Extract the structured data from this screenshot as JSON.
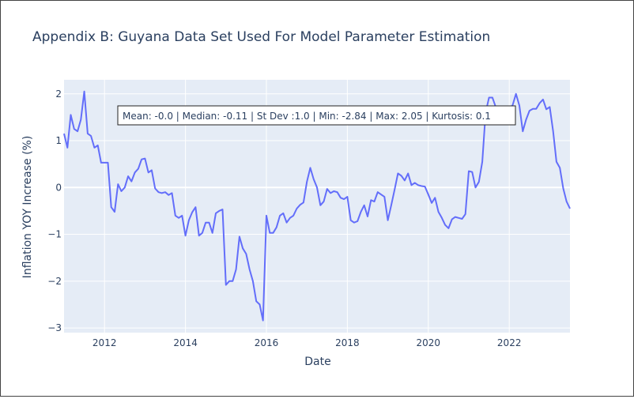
{
  "chart_data": {
    "type": "line",
    "title": "Appendix B: Guyana Data Set Used For Model Parameter Estimation",
    "xlabel": "Date",
    "ylabel": "Inflation YOY Increase (%)",
    "annotation": "Mean: -0.0 | Median: -0.11 | St Dev :1.0 | Min: -2.84 | Max: 2.05 | Kurtosis: 0.1",
    "x_ticks": [
      "2012",
      "2014",
      "2016",
      "2018",
      "2020",
      "2022"
    ],
    "y_ticks": [
      "−3",
      "−2",
      "−1",
      "0",
      "1",
      "2"
    ],
    "xlim": [
      "2011-01",
      "2023-07"
    ],
    "ylim": [
      -3.1,
      2.3
    ],
    "grid": true,
    "colors": {
      "line": "#636efa",
      "plot_bg": "#e5ecf6",
      "text": "#2a3f5f",
      "grid": "#ffffff"
    },
    "series": [
      {
        "x": [
          "2011-01",
          "2011-02",
          "2011-03",
          "2011-04",
          "2011-05",
          "2011-06",
          "2011-07",
          "2011-08",
          "2011-09",
          "2011-10",
          "2011-11",
          "2011-12",
          "2012-01",
          "2012-02",
          "2012-03",
          "2012-04",
          "2012-05",
          "2012-06",
          "2012-07",
          "2012-08",
          "2012-09",
          "2012-10",
          "2012-11",
          "2012-12",
          "2013-01",
          "2013-02",
          "2013-03",
          "2013-04",
          "2013-05",
          "2013-06",
          "2013-07",
          "2013-08",
          "2013-09",
          "2013-10",
          "2013-11",
          "2013-12",
          "2014-01",
          "2014-02",
          "2014-03",
          "2014-04",
          "2014-05",
          "2014-06",
          "2014-07",
          "2014-08",
          "2014-09",
          "2014-10",
          "2014-11",
          "2014-12",
          "2015-01",
          "2015-02",
          "2015-03",
          "2015-04",
          "2015-05",
          "2015-06",
          "2015-07",
          "2015-08",
          "2015-09",
          "2015-10",
          "2015-11",
          "2015-12",
          "2016-01",
          "2016-02",
          "2016-03",
          "2016-04",
          "2016-05",
          "2016-06",
          "2016-07",
          "2016-08",
          "2016-09",
          "2016-10",
          "2016-11",
          "2016-12",
          "2017-01",
          "2017-02",
          "2017-03",
          "2017-04",
          "2017-05",
          "2017-06",
          "2017-07",
          "2017-08",
          "2017-09",
          "2017-10",
          "2017-11",
          "2017-12",
          "2018-01",
          "2018-02",
          "2018-03",
          "2018-04",
          "2018-05",
          "2018-06",
          "2018-07",
          "2018-08",
          "2018-09",
          "2018-10",
          "2018-11",
          "2018-12",
          "2019-01",
          "2019-02",
          "2019-03",
          "2019-04",
          "2019-05",
          "2019-06",
          "2019-07",
          "2019-08",
          "2019-09",
          "2019-10",
          "2019-11",
          "2019-12",
          "2020-01",
          "2020-02",
          "2020-03",
          "2020-04",
          "2020-05",
          "2020-06",
          "2020-07",
          "2020-08",
          "2020-09",
          "2020-10",
          "2020-11",
          "2020-12",
          "2021-01",
          "2021-02",
          "2021-03",
          "2021-04",
          "2021-05",
          "2021-06",
          "2021-07",
          "2021-08",
          "2021-09",
          "2021-10",
          "2021-11",
          "2021-12",
          "2022-01",
          "2022-02",
          "2022-03",
          "2022-04",
          "2022-05",
          "2022-06",
          "2022-07",
          "2022-08",
          "2022-09",
          "2022-10",
          "2022-11",
          "2022-12",
          "2023-01",
          "2023-02",
          "2023-03",
          "2023-04",
          "2023-05",
          "2023-06",
          "2023-07"
        ],
        "y": [
          1.15,
          0.85,
          1.55,
          1.25,
          1.2,
          1.45,
          2.05,
          1.15,
          1.1,
          0.85,
          0.9,
          0.53,
          0.53,
          0.53,
          -0.42,
          -0.52,
          0.07,
          -0.08,
          0.0,
          0.24,
          0.13,
          0.32,
          0.4,
          0.6,
          0.62,
          0.32,
          0.37,
          -0.02,
          -0.1,
          -0.12,
          -0.1,
          -0.16,
          -0.12,
          -0.6,
          -0.65,
          -0.6,
          -1.03,
          -0.7,
          -0.53,
          -0.42,
          -1.03,
          -0.97,
          -0.75,
          -0.75,
          -0.97,
          -0.55,
          -0.5,
          -0.47,
          -2.08,
          -2.0,
          -2.0,
          -1.75,
          -1.05,
          -1.3,
          -1.42,
          -1.75,
          -2.0,
          -2.43,
          -2.5,
          -2.84,
          -0.6,
          -0.97,
          -0.97,
          -0.85,
          -0.6,
          -0.55,
          -0.75,
          -0.65,
          -0.6,
          -0.45,
          -0.37,
          -0.32,
          0.12,
          0.42,
          0.18,
          0.0,
          -0.38,
          -0.3,
          -0.03,
          -0.12,
          -0.08,
          -0.1,
          -0.22,
          -0.25,
          -0.2,
          -0.7,
          -0.75,
          -0.72,
          -0.52,
          -0.38,
          -0.62,
          -0.27,
          -0.3,
          -0.1,
          -0.15,
          -0.2,
          -0.7,
          -0.38,
          -0.05,
          0.3,
          0.25,
          0.15,
          0.3,
          0.05,
          0.1,
          0.05,
          0.03,
          0.02,
          -0.15,
          -0.33,
          -0.22,
          -0.52,
          -0.65,
          -0.8,
          -0.87,
          -0.68,
          -0.63,
          -0.65,
          -0.67,
          -0.57,
          0.35,
          0.33,
          0.0,
          0.12,
          0.55,
          1.6,
          1.92,
          1.92,
          1.72,
          1.7,
          1.68,
          1.67,
          1.67,
          1.76,
          2.0,
          1.75,
          1.2,
          1.45,
          1.64,
          1.68,
          1.68,
          1.8,
          1.88,
          1.67,
          1.72,
          1.2,
          0.55,
          0.42,
          -0.02,
          -0.3,
          -0.45
        ]
      }
    ]
  }
}
